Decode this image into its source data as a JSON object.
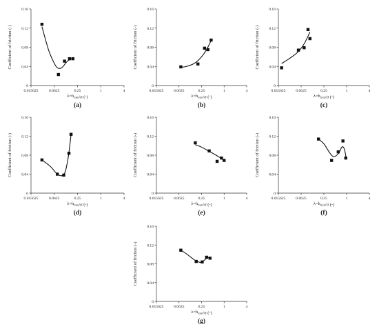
{
  "panel_labels": [
    "(a)",
    "(b)",
    "(c)",
    "(d)",
    "(e)",
    "(f)",
    "(g)"
  ],
  "chart_data": [
    {
      "type": "scatter",
      "label": "(a)",
      "xlabel": "λ=h_min/σ (-)",
      "ylabel": "Coefficient of friction (-)",
      "x_scale": "log2",
      "xlim": [
        0.015625,
        4
      ],
      "ylim": [
        0,
        0.16
      ],
      "x_ticks": [
        "0.015625",
        "0.0625",
        "0.25",
        "1",
        "4"
      ],
      "y_ticks": [
        "0",
        "0.04",
        "0.08",
        "0.12",
        "0.16"
      ],
      "grid": false,
      "series": [
        {
          "x": [
            0.03,
            0.08,
            0.115,
            0.155,
            0.19
          ],
          "y": [
            0.128,
            0.023,
            0.051,
            0.056,
            0.056
          ]
        }
      ],
      "fit_curve": {
        "x": [
          0.03,
          0.045,
          0.065,
          0.08,
          0.1,
          0.13,
          0.16,
          0.19
        ],
        "y": [
          0.123,
          0.073,
          0.044,
          0.036,
          0.038,
          0.049,
          0.055,
          0.056
        ]
      }
    },
    {
      "type": "scatter",
      "label": "(b)",
      "xlabel": "λ=h_min/σ (-)",
      "ylabel": "Coefficient of friction (-)",
      "x_scale": "log2",
      "xlim": [
        0.015625,
        4
      ],
      "ylim": [
        0,
        0.16
      ],
      "x_ticks": [
        "0.015625",
        "0.0625",
        "0.25",
        "1",
        "4"
      ],
      "y_ticks": [
        "0",
        "0.04",
        "0.08",
        "0.12",
        "0.16"
      ],
      "grid": false,
      "series": [
        {
          "x": [
            0.07,
            0.2,
            0.3,
            0.37,
            0.45
          ],
          "y": [
            0.039,
            0.045,
            0.078,
            0.075,
            0.095
          ]
        }
      ],
      "fit_curve": {
        "x": [
          0.07,
          0.1,
          0.15,
          0.2,
          0.28,
          0.35,
          0.45
        ],
        "y": [
          0.038,
          0.04,
          0.045,
          0.052,
          0.065,
          0.077,
          0.094
        ]
      }
    },
    {
      "type": "scatter",
      "label": "(c)",
      "xlabel": "λ=h_min/σ (-)",
      "ylabel": "Coefficient of friction (-)",
      "x_scale": "log2",
      "xlim": [
        0.015625,
        4
      ],
      "ylim": [
        0,
        0.16
      ],
      "x_ticks": [
        "0.015625",
        "0.0625",
        "0.25",
        "1",
        "4"
      ],
      "y_ticks": [
        "0",
        "0.04",
        "0.08",
        "0.12",
        "0.16"
      ],
      "grid": false,
      "series": [
        {
          "x": [
            0.019,
            0.053,
            0.075,
            0.095,
            0.107
          ],
          "y": [
            0.037,
            0.074,
            0.079,
            0.117,
            0.098
          ]
        }
      ],
      "fit_curve": {
        "x": [
          0.019,
          0.03,
          0.045,
          0.06,
          0.075,
          0.09,
          0.107
        ],
        "y": [
          0.046,
          0.056,
          0.066,
          0.076,
          0.087,
          0.099,
          0.112
        ]
      }
    },
    {
      "type": "scatter",
      "label": "(d)",
      "xlabel": "λ=h_min/σ (-)",
      "ylabel": "Coefficient of friction (-)",
      "x_scale": "log2",
      "xlim": [
        0.015625,
        4
      ],
      "ylim": [
        0,
        0.16
      ],
      "x_ticks": [
        "0.015625",
        "0.0625",
        "0.25",
        "1",
        "4"
      ],
      "y_ticks": [
        "0",
        "0.04",
        "0.08",
        "0.12",
        "0.16"
      ],
      "grid": false,
      "series": [
        {
          "x": [
            0.03,
            0.075,
            0.11,
            0.15,
            0.17
          ],
          "y": [
            0.07,
            0.04,
            0.038,
            0.084,
            0.124
          ]
        }
      ],
      "fit_curve": {
        "x": [
          0.03,
          0.05,
          0.075,
          0.1,
          0.12,
          0.14,
          0.155,
          0.17
        ],
        "y": [
          0.07,
          0.056,
          0.04,
          0.037,
          0.045,
          0.07,
          0.095,
          0.124
        ]
      }
    },
    {
      "type": "scatter",
      "label": "(e)",
      "xlabel": "λ=h_min/σ (-)",
      "ylabel": "Coefficient of friction (-)",
      "x_scale": "log2",
      "xlim": [
        0.015625,
        4
      ],
      "ylim": [
        0,
        0.16
      ],
      "x_ticks": [
        "0.015625",
        "0.0625",
        "0.25",
        "1",
        "4"
      ],
      "y_ticks": [
        "0",
        "0.04",
        "0.08",
        "0.12",
        "0.16"
      ],
      "grid": false,
      "series": [
        {
          "x": [
            0.17,
            0.4,
            0.65,
            0.85,
            1.0
          ],
          "y": [
            0.106,
            0.089,
            0.067,
            0.074,
            0.069
          ]
        }
      ],
      "fit_curve": {
        "x": [
          0.17,
          0.25,
          0.4,
          0.55,
          0.7,
          0.85,
          1.0
        ],
        "y": [
          0.102,
          0.097,
          0.088,
          0.082,
          0.077,
          0.073,
          0.068
        ]
      }
    },
    {
      "type": "scatter",
      "label": "(f)",
      "xlabel": "λ=h_min/σ (-)",
      "ylabel": "Coefficient of friction (-)",
      "x_scale": "log2",
      "xlim": [
        0.015625,
        4
      ],
      "ylim": [
        0,
        0.16
      ],
      "x_ticks": [
        "0.015625",
        "0.0625",
        "0.25",
        "1",
        "4"
      ],
      "y_ticks": [
        "0",
        "0.04",
        "0.08",
        "0.12",
        "0.16"
      ],
      "grid": false,
      "series": [
        {
          "x": [
            0.18,
            0.4,
            0.6,
            0.8,
            0.95
          ],
          "y": [
            0.114,
            0.069,
            0.087,
            0.11,
            0.074
          ]
        }
      ],
      "fit_curve": {
        "x": [
          0.18,
          0.25,
          0.35,
          0.45,
          0.6,
          0.75,
          0.85,
          0.92,
          0.97
        ],
        "y": [
          0.114,
          0.104,
          0.086,
          0.077,
          0.083,
          0.097,
          0.095,
          0.085,
          0.074
        ]
      }
    },
    {
      "type": "scatter",
      "label": "(g)",
      "xlabel": "λ=h_min/σ (-)",
      "ylabel": "Coefficient of friction (-)",
      "x_scale": "log2",
      "xlim": [
        0.015625,
        4
      ],
      "ylim": [
        0,
        0.16
      ],
      "x_ticks": [
        "0.015625",
        "0.0625",
        "0.25",
        "1",
        "4"
      ],
      "y_ticks": [
        "0",
        "0.04",
        "0.08",
        "0.12",
        "0.16"
      ],
      "grid": false,
      "series": [
        {
          "x": [
            0.07,
            0.18,
            0.26,
            0.34,
            0.42
          ],
          "y": [
            0.109,
            0.085,
            0.084,
            0.094,
            0.092
          ]
        }
      ],
      "fit_curve": {
        "x": [
          0.07,
          0.1,
          0.14,
          0.18,
          0.24,
          0.3,
          0.36,
          0.42
        ],
        "y": [
          0.109,
          0.101,
          0.092,
          0.086,
          0.083,
          0.088,
          0.093,
          0.092
        ]
      }
    }
  ]
}
